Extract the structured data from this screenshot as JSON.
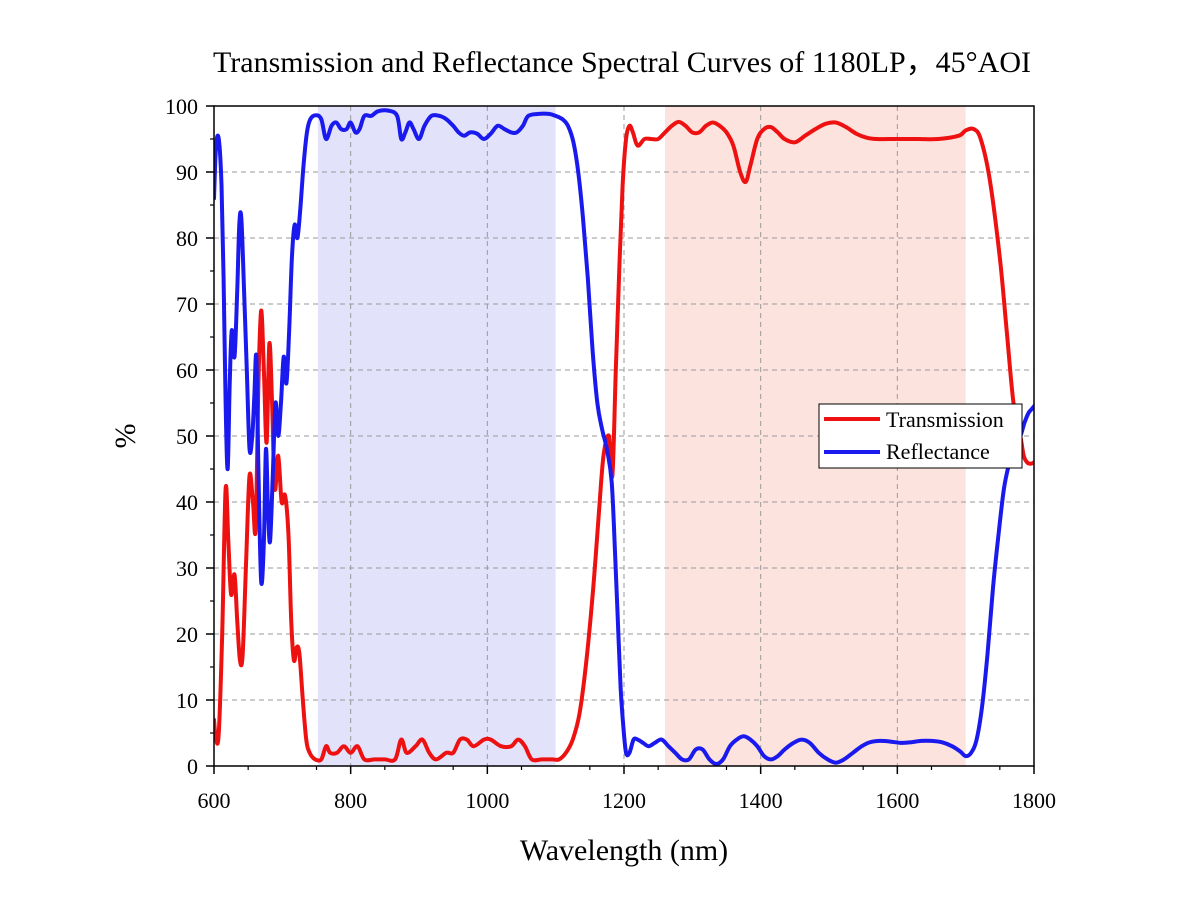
{
  "chart_data": {
    "type": "line",
    "title": "Transmission and Reflectance Spectral Curves of 1180LP，45°AOI",
    "xlabel": "Wavelength (nm)",
    "ylabel": "%",
    "xlim": [
      600,
      1800
    ],
    "ylim": [
      0,
      100
    ],
    "x_ticks": [
      600,
      800,
      1000,
      1200,
      1400,
      1600,
      1800
    ],
    "y_ticks": [
      0,
      10,
      20,
      30,
      40,
      50,
      60,
      70,
      80,
      90,
      100
    ],
    "grid": true,
    "legend_position": "right",
    "bands": [
      {
        "x_start": 752,
        "x_end": 1100,
        "color": "#e3e2fb"
      },
      {
        "x_start": 1260,
        "x_end": 1700,
        "color": "#fde3de"
      }
    ],
    "series": [
      {
        "name": "Transmission",
        "color": "#ee1111",
        "points": [
          [
            600,
            7
          ],
          [
            603,
            4
          ],
          [
            607,
            5
          ],
          [
            612,
            20
          ],
          [
            617,
            42
          ],
          [
            621,
            34
          ],
          [
            625,
            26
          ],
          [
            630,
            29
          ],
          [
            634,
            22
          ],
          [
            638,
            16
          ],
          [
            642,
            17
          ],
          [
            647,
            31
          ],
          [
            652,
            44
          ],
          [
            657,
            40
          ],
          [
            661,
            36
          ],
          [
            665,
            58
          ],
          [
            669,
            69
          ],
          [
            673,
            60
          ],
          [
            677,
            49
          ],
          [
            681,
            64
          ],
          [
            685,
            55
          ],
          [
            689,
            42
          ],
          [
            694,
            47
          ],
          [
            699,
            40
          ],
          [
            704,
            41
          ],
          [
            709,
            35
          ],
          [
            713,
            22
          ],
          [
            717,
            16
          ],
          [
            721,
            18
          ],
          [
            725,
            17
          ],
          [
            730,
            10
          ],
          [
            735,
            4
          ],
          [
            740,
            2
          ],
          [
            748,
            1
          ],
          [
            757,
            1
          ],
          [
            764,
            3
          ],
          [
            770,
            2
          ],
          [
            780,
            2
          ],
          [
            790,
            3
          ],
          [
            800,
            2
          ],
          [
            810,
            3
          ],
          [
            820,
            1
          ],
          [
            835,
            1
          ],
          [
            850,
            1
          ],
          [
            865,
            1
          ],
          [
            874,
            4
          ],
          [
            882,
            2
          ],
          [
            895,
            3
          ],
          [
            905,
            4
          ],
          [
            915,
            2
          ],
          [
            925,
            1
          ],
          [
            940,
            2
          ],
          [
            950,
            2
          ],
          [
            960,
            4
          ],
          [
            970,
            4
          ],
          [
            980,
            3
          ],
          [
            995,
            4
          ],
          [
            1005,
            4
          ],
          [
            1020,
            3
          ],
          [
            1035,
            3
          ],
          [
            1045,
            4
          ],
          [
            1055,
            3
          ],
          [
            1065,
            1
          ],
          [
            1080,
            1
          ],
          [
            1095,
            1
          ],
          [
            1105,
            1
          ],
          [
            1115,
            2
          ],
          [
            1125,
            4
          ],
          [
            1135,
            8
          ],
          [
            1145,
            16
          ],
          [
            1155,
            27
          ],
          [
            1163,
            38
          ],
          [
            1170,
            47
          ],
          [
            1178,
            50
          ],
          [
            1183,
            44
          ],
          [
            1188,
            60
          ],
          [
            1193,
            75
          ],
          [
            1198,
            88
          ],
          [
            1203,
            95
          ],
          [
            1208,
            97
          ],
          [
            1213,
            96
          ],
          [
            1220,
            94
          ],
          [
            1230,
            95
          ],
          [
            1240,
            95
          ],
          [
            1250,
            95
          ],
          [
            1260,
            96
          ],
          [
            1270,
            97
          ],
          [
            1280,
            97.6
          ],
          [
            1290,
            97
          ],
          [
            1300,
            96
          ],
          [
            1310,
            96
          ],
          [
            1320,
            97
          ],
          [
            1330,
            97.5
          ],
          [
            1340,
            97
          ],
          [
            1350,
            96
          ],
          [
            1360,
            94
          ],
          [
            1370,
            90
          ],
          [
            1378,
            88.5
          ],
          [
            1385,
            91
          ],
          [
            1395,
            95
          ],
          [
            1405,
            96.5
          ],
          [
            1415,
            96.8
          ],
          [
            1425,
            96
          ],
          [
            1435,
            95
          ],
          [
            1450,
            94.5
          ],
          [
            1465,
            95.5
          ],
          [
            1480,
            96.5
          ],
          [
            1495,
            97.3
          ],
          [
            1510,
            97.5
          ],
          [
            1525,
            96.8
          ],
          [
            1540,
            95.8
          ],
          [
            1555,
            95.2
          ],
          [
            1570,
            95
          ],
          [
            1600,
            95
          ],
          [
            1630,
            95
          ],
          [
            1660,
            95
          ],
          [
            1690,
            95.5
          ],
          [
            1700,
            96.3
          ],
          [
            1712,
            96.5
          ],
          [
            1722,
            95
          ],
          [
            1735,
            89
          ],
          [
            1750,
            77
          ],
          [
            1760,
            66
          ],
          [
            1770,
            55
          ],
          [
            1780,
            50
          ],
          [
            1785,
            47
          ],
          [
            1790,
            46
          ],
          [
            1795,
            45.8
          ],
          [
            1800,
            46
          ]
        ]
      },
      {
        "name": "Reflectance",
        "color": "#1a1aee",
        "points": [
          [
            600,
            86
          ],
          [
            603,
            94
          ],
          [
            607,
            95
          ],
          [
            611,
            88
          ],
          [
            614,
            74
          ],
          [
            617,
            55
          ],
          [
            620,
            45
          ],
          [
            623,
            58
          ],
          [
            626,
            66
          ],
          [
            630,
            62
          ],
          [
            634,
            72
          ],
          [
            637,
            82
          ],
          [
            640,
            83
          ],
          [
            644,
            72
          ],
          [
            648,
            60
          ],
          [
            652,
            48
          ],
          [
            656,
            50
          ],
          [
            659,
            56
          ],
          [
            662,
            62
          ],
          [
            665,
            45
          ],
          [
            669,
            28
          ],
          [
            673,
            34
          ],
          [
            676,
            48
          ],
          [
            679,
            39
          ],
          [
            682,
            34
          ],
          [
            686,
            44
          ],
          [
            690,
            55
          ],
          [
            694,
            50
          ],
          [
            698,
            55
          ],
          [
            702,
            62
          ],
          [
            706,
            58
          ],
          [
            710,
            66
          ],
          [
            714,
            77
          ],
          [
            718,
            82
          ],
          [
            722,
            80
          ],
          [
            726,
            84
          ],
          [
            731,
            91
          ],
          [
            736,
            96
          ],
          [
            741,
            98
          ],
          [
            749,
            98.6
          ],
          [
            757,
            98
          ],
          [
            764,
            95
          ],
          [
            772,
            97
          ],
          [
            779,
            97.5
          ],
          [
            786,
            96.5
          ],
          [
            794,
            96.5
          ],
          [
            800,
            97.5
          ],
          [
            807,
            96
          ],
          [
            813,
            96.5
          ],
          [
            820,
            98.5
          ],
          [
            830,
            98.5
          ],
          [
            840,
            99.2
          ],
          [
            855,
            99.3
          ],
          [
            868,
            98.5
          ],
          [
            874,
            95
          ],
          [
            880,
            96
          ],
          [
            886,
            97.5
          ],
          [
            892,
            96.5
          ],
          [
            900,
            95
          ],
          [
            908,
            97
          ],
          [
            918,
            98.5
          ],
          [
            930,
            98.5
          ],
          [
            940,
            98
          ],
          [
            950,
            97
          ],
          [
            958,
            96
          ],
          [
            966,
            95.5
          ],
          [
            975,
            96
          ],
          [
            985,
            95.8
          ],
          [
            995,
            95
          ],
          [
            1005,
            95.8
          ],
          [
            1015,
            97
          ],
          [
            1025,
            96.5
          ],
          [
            1035,
            96
          ],
          [
            1043,
            96
          ],
          [
            1052,
            97
          ],
          [
            1060,
            98.5
          ],
          [
            1075,
            98.8
          ],
          [
            1090,
            98.8
          ],
          [
            1100,
            98.5
          ],
          [
            1110,
            98
          ],
          [
            1118,
            97
          ],
          [
            1126,
            94.5
          ],
          [
            1133,
            90
          ],
          [
            1140,
            83
          ],
          [
            1147,
            74
          ],
          [
            1154,
            63
          ],
          [
            1161,
            55
          ],
          [
            1168,
            51
          ],
          [
            1175,
            48
          ],
          [
            1182,
            43
          ],
          [
            1187,
            32
          ],
          [
            1191,
            22
          ],
          [
            1195,
            12
          ],
          [
            1199,
            6
          ],
          [
            1203,
            2
          ],
          [
            1208,
            2
          ],
          [
            1214,
            4
          ],
          [
            1220,
            4
          ],
          [
            1228,
            3.5
          ],
          [
            1236,
            3
          ],
          [
            1245,
            3.5
          ],
          [
            1255,
            4
          ],
          [
            1265,
            3
          ],
          [
            1275,
            2
          ],
          [
            1285,
            1
          ],
          [
            1295,
            1
          ],
          [
            1305,
            2.5
          ],
          [
            1315,
            2.5
          ],
          [
            1325,
            1
          ],
          [
            1335,
            0.3
          ],
          [
            1345,
            1
          ],
          [
            1355,
            3
          ],
          [
            1365,
            4
          ],
          [
            1375,
            4.5
          ],
          [
            1385,
            4
          ],
          [
            1395,
            3
          ],
          [
            1405,
            1.5
          ],
          [
            1415,
            1
          ],
          [
            1425,
            1.5
          ],
          [
            1435,
            2.5
          ],
          [
            1448,
            3.5
          ],
          [
            1460,
            4
          ],
          [
            1472,
            3.5
          ],
          [
            1485,
            2
          ],
          [
            1498,
            1
          ],
          [
            1510,
            0.5
          ],
          [
            1522,
            1
          ],
          [
            1535,
            2
          ],
          [
            1548,
            3
          ],
          [
            1560,
            3.6
          ],
          [
            1575,
            3.8
          ],
          [
            1590,
            3.7
          ],
          [
            1605,
            3.5
          ],
          [
            1620,
            3.6
          ],
          [
            1635,
            3.8
          ],
          [
            1650,
            3.8
          ],
          [
            1665,
            3.6
          ],
          [
            1680,
            3
          ],
          [
            1692,
            2.2
          ],
          [
            1700,
            1.5
          ],
          [
            1708,
            2
          ],
          [
            1716,
            4
          ],
          [
            1724,
            9
          ],
          [
            1732,
            17
          ],
          [
            1740,
            27
          ],
          [
            1748,
            35
          ],
          [
            1756,
            42
          ],
          [
            1764,
            46
          ],
          [
            1772,
            49
          ],
          [
            1780,
            50
          ],
          [
            1786,
            52
          ],
          [
            1792,
            53.5
          ],
          [
            1796,
            54
          ],
          [
            1800,
            54.5
          ]
        ]
      }
    ]
  }
}
